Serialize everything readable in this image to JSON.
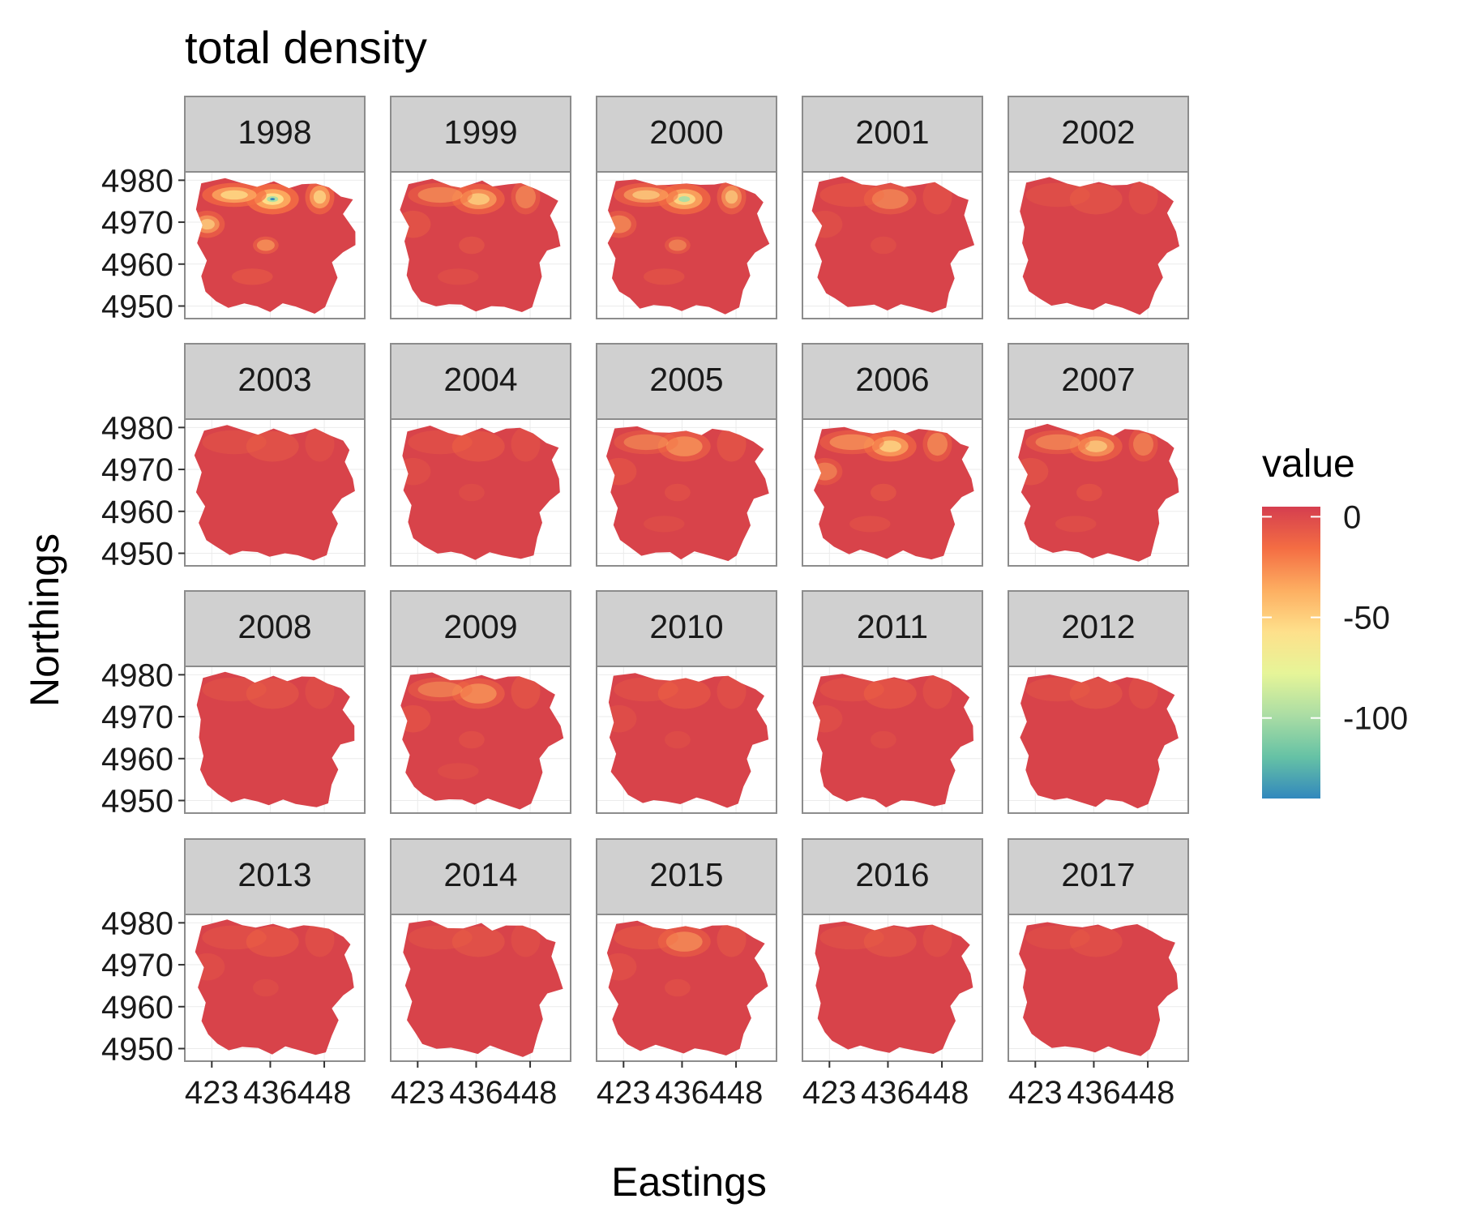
{
  "chart_data": {
    "type": "heatmap",
    "title": "total density",
    "xlabel": "Eastings",
    "ylabel": "Northings",
    "panels": [
      "1998",
      "1999",
      "2000",
      "2001",
      "2002",
      "2003",
      "2004",
      "2005",
      "2006",
      "2007",
      "2008",
      "2009",
      "2010",
      "2011",
      "2012",
      "2013",
      "2014",
      "2015",
      "2016",
      "2017"
    ],
    "facet_layout": {
      "columns": 5,
      "rows": 4
    },
    "x_ticks": [
      423,
      436,
      448
    ],
    "y_ticks": [
      4950,
      4960,
      4970,
      4980
    ],
    "xlim": [
      417,
      457
    ],
    "ylim": [
      4947,
      4982
    ],
    "hotspot_intensity": [
      1.0,
      0.65,
      0.8,
      0.45,
      0.35,
      0.35,
      0.4,
      0.55,
      0.7,
      0.6,
      0.35,
      0.55,
      0.4,
      0.4,
      0.35,
      0.4,
      0.35,
      0.5,
      0.35,
      0.3
    ],
    "legend": {
      "title": "value",
      "placement": "right",
      "range": [
        -140,
        5
      ],
      "ticks": [
        0,
        -50,
        -100
      ],
      "tick_labels": [
        "0",
        "-50",
        "-100"
      ],
      "palette": [
        "#d53e4f",
        "#f46d43",
        "#fdae61",
        "#fee08b",
        "#e6f598",
        "#abdda4",
        "#66c2a5",
        "#3288bd"
      ]
    },
    "grid": true
  },
  "colors": {
    "base_fill": "#d8434a",
    "strip_fill": "#d0d0d0",
    "frame": "#8c8c8c"
  }
}
